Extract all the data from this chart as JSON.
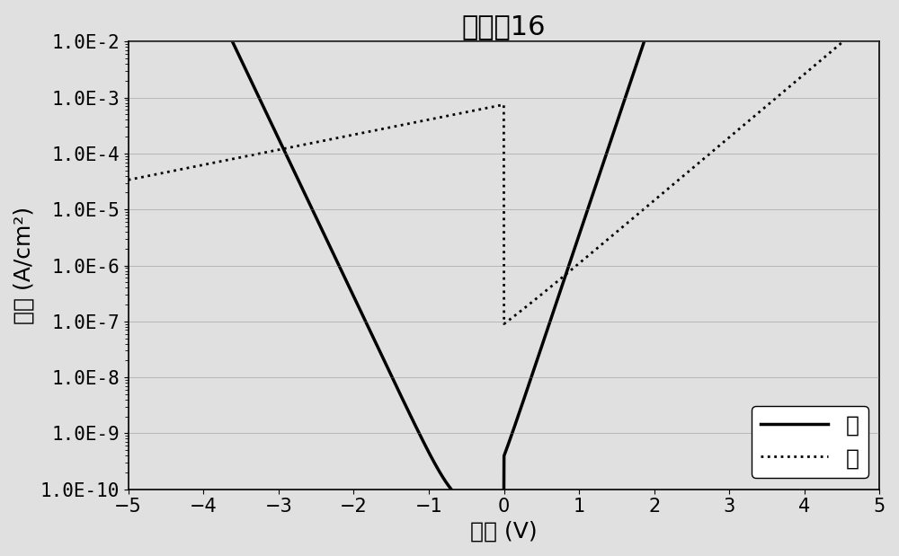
{
  "title": "聚合物16",
  "xlabel": "偏压 (V)",
  "ylabel": "电流 (A/cm²)",
  "xlim": [
    -5,
    5
  ],
  "ylog_min": -10,
  "ylog_max": -2,
  "xticks": [
    -5,
    -4,
    -3,
    -2,
    -1,
    0,
    1,
    2,
    3,
    4,
    5
  ],
  "legend_dark": "暗",
  "legend_light": "亮",
  "bg_color": "#e0e0e0",
  "line_color": "#000000",
  "title_fontsize": 22,
  "label_fontsize": 18,
  "tick_fontsize": 15,
  "legend_fontsize": 18
}
